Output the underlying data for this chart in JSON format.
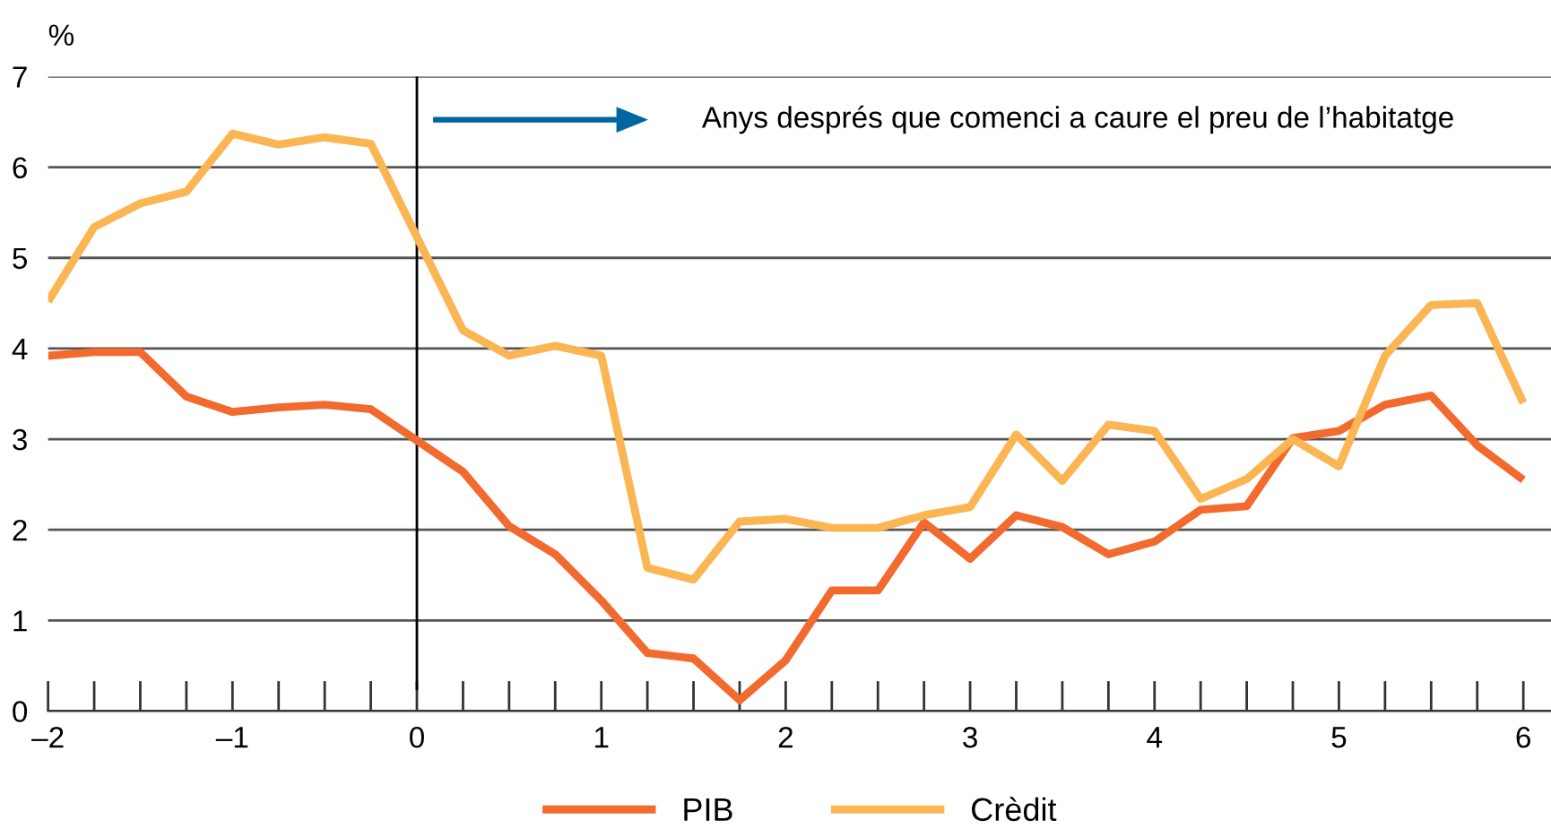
{
  "chart_data": {
    "type": "line",
    "ylabel": "%",
    "x": [
      -2,
      -1.75,
      -1.5,
      -1.25,
      -1,
      -0.75,
      -0.5,
      -0.25,
      0.25,
      0.5,
      0.75,
      1,
      1.25,
      1.5,
      1.75,
      2,
      2.25,
      2.5,
      2.75,
      3,
      3.25,
      3.5,
      3.75,
      4,
      4.25,
      4.5,
      4.75,
      5,
      5.25,
      5.5,
      5.75,
      6
    ],
    "series": [
      {
        "name": "PIB",
        "color": "#f26a2e",
        "values": [
          3.92,
          3.96,
          3.96,
          3.47,
          3.3,
          3.35,
          3.38,
          3.33,
          2.64,
          2.04,
          1.73,
          1.22,
          0.64,
          0.58,
          0.12,
          0.56,
          1.33,
          1.33,
          2.08,
          1.68,
          2.16,
          2.03,
          1.73,
          1.87,
          2.22,
          2.26,
          3.01,
          3.09,
          3.38,
          3.48,
          2.93,
          2.55
        ]
      },
      {
        "name": "Crèdit",
        "color": "#fbb552",
        "values": [
          4.52,
          5.34,
          5.6,
          5.73,
          6.37,
          6.25,
          6.33,
          6.26,
          4.2,
          3.92,
          4.03,
          3.92,
          1.58,
          1.45,
          2.09,
          2.12,
          2.02,
          2.02,
          2.16,
          2.25,
          3.05,
          2.54,
          3.16,
          3.09,
          2.34,
          2.56,
          3.0,
          2.7,
          3.92,
          4.48,
          4.5,
          3.4
        ]
      }
    ],
    "xlim": [
      -2,
      6.15
    ],
    "ylim": [
      0,
      7
    ],
    "yticks": [
      0,
      1,
      2,
      3,
      4,
      5,
      6,
      7
    ],
    "xticks": [
      {
        "value": -2,
        "label": "–2"
      },
      {
        "value": -1,
        "label": "–1"
      },
      0,
      1,
      2,
      3,
      4,
      5,
      6
    ],
    "ref_lines": [
      {
        "axis": "x",
        "value": 0,
        "color": "#000000"
      }
    ],
    "annotations": [
      "Anys després que comenci a caure el preu de l’habitatge"
    ],
    "grid": "y",
    "legend": "bottom",
    "marker": "none",
    "line_style": "solid"
  }
}
